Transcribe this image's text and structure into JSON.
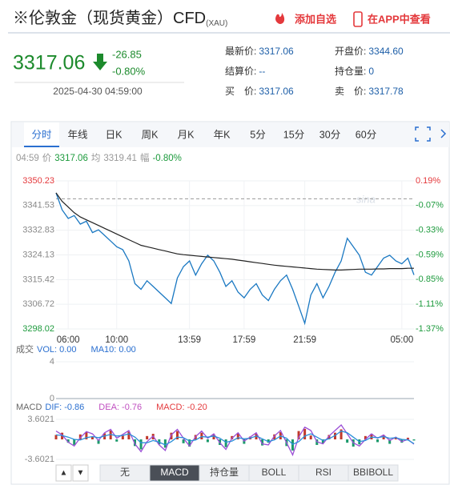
{
  "header": {
    "title": "※伦敦金（现货黄金）CFD",
    "code": "(XAU)",
    "actions": [
      "添加自选",
      "在APP中查看"
    ]
  },
  "quote": {
    "price": "3317.06",
    "change": "-26.85",
    "change_pct": "-0.80%",
    "time": "2025-04-30 04:59:00"
  },
  "stats": [
    {
      "label": "最新价:",
      "value": "3317.06"
    },
    {
      "label": "开盘价:",
      "value": "3344.60"
    },
    {
      "label": "结算价:",
      "value": "--"
    },
    {
      "label": "持仓量:",
      "value": "0"
    },
    {
      "label": "买　价:",
      "value": "3317.06"
    },
    {
      "label": "卖　价:",
      "value": "3317.78"
    }
  ],
  "tabs": [
    "分时",
    "年线",
    "日K",
    "周K",
    "月K",
    "年K",
    "5分",
    "15分",
    "30分",
    "60分"
  ],
  "active_tab": 0,
  "info": [
    "04:59",
    "价",
    "3317.06",
    "均",
    "3319.41",
    "幅",
    "-0.80%"
  ],
  "chart_data": [
    {
      "type": "line",
      "categories": [
        null,
        null,
        "06:00",
        null,
        null,
        null,
        null,
        null,
        null,
        null,
        "10:00",
        null,
        null,
        null,
        null,
        null,
        null,
        null,
        null,
        null,
        null,
        null,
        "13:59",
        null,
        null,
        null,
        null,
        null,
        null,
        null,
        null,
        "17:59",
        null,
        null,
        null,
        null,
        null,
        null,
        null,
        null,
        null,
        "21:59",
        null,
        null,
        null,
        null,
        null,
        null,
        null,
        null,
        null,
        null,
        null,
        null,
        null,
        null,
        null,
        "05:00",
        null,
        null
      ],
      "series": [
        {
          "color": "#1a78c2",
          "values": [
            3346,
            3340,
            3337,
            3338,
            3335,
            3336,
            3332,
            3333,
            3331,
            3329,
            3327,
            3326,
            3322,
            3314,
            3312,
            3315,
            3313,
            3311,
            3309,
            3307,
            3316,
            3320,
            3322,
            3317,
            3321,
            3324,
            3322,
            3318,
            3313,
            3315,
            3311,
            3309,
            3312,
            3314,
            3310,
            3308,
            3312,
            3315,
            3317,
            3312,
            3306,
            3300,
            3310,
            3314,
            3309,
            3313,
            3318,
            3322,
            3330,
            3327,
            3324,
            3318,
            3317,
            3320,
            3323,
            3324,
            3322,
            3321,
            3323,
            3317.06
          ]
        },
        {
          "color": "#222222",
          "values": [
            3346,
            3343,
            3341,
            3339,
            3337.5,
            3336.5,
            3335.5,
            3334.5,
            3333.5,
            3332.5,
            3331.5,
            3330.5,
            3329.5,
            3328.5,
            3327.5,
            3327,
            3326.5,
            3326,
            3325.5,
            3325,
            3324.5,
            3324.2,
            3324,
            3323.8,
            3323.6,
            3323.4,
            3323.2,
            3323,
            3322.8,
            3322.6,
            3322.3,
            3322,
            3321.7,
            3321.4,
            3321.1,
            3320.8,
            3320.5,
            3320.3,
            3320.1,
            3319.9,
            3319.7,
            3319.5,
            3319.3,
            3319.1,
            3319,
            3318.9,
            3318.8,
            3318.8,
            3318.9,
            3319,
            3319.1,
            3319.1,
            3319.1,
            3319.2,
            3319.2,
            3319.3,
            3319.3,
            3319.3,
            3319.4,
            3319.41
          ]
        }
      ],
      "baseline": 3343.91,
      "ylim": [
        3298.02,
        3350.23
      ],
      "yticks": [
        3350.23,
        3341.53,
        3332.83,
        3324.13,
        3315.42,
        3306.72,
        3298.02
      ],
      "y2lim": [
        -1.37,
        0.19
      ],
      "y2ticks": [
        {
          "value": 0.19,
          "label": "0.19%"
        },
        {
          "value": -0.07,
          "label": "-0.07%"
        },
        {
          "value": -0.33,
          "label": "-0.33%"
        },
        {
          "value": -0.59,
          "label": "-0.59%"
        },
        {
          "value": -0.85,
          "label": "-0.85%"
        },
        {
          "value": -1.11,
          "label": "-1.11%"
        },
        {
          "value": -1.37,
          "label": "-1.37%"
        }
      ],
      "up_color": "#e4393c",
      "down_color": "#1c9a3c",
      "grid": true
    },
    {
      "type": "bar",
      "title": "成交",
      "legend": [
        "VOL: 0.00",
        "MA10: 0.00"
      ],
      "values": [],
      "ylim": [
        0,
        4
      ],
      "yticks": [
        4,
        0
      ]
    },
    {
      "type": "bar",
      "title": "MACD",
      "legend": [
        "DIF: -0.86",
        "DEA: -0.76",
        "MACD: -0.20"
      ],
      "values": [
        0.8,
        1.2,
        -0.6,
        -1.0,
        0.9,
        1.3,
        0.5,
        -0.8,
        1.1,
        1.6,
        -0.4,
        0.7,
        1.4,
        -1.2,
        -1.8,
        0.6,
        1.0,
        -0.9,
        -1.5,
        1.2,
        1.5,
        -0.7,
        -1.3,
        0.8,
        1.2,
        -0.5,
        0.9,
        -1.0,
        -1.4,
        0.6,
        1.1,
        -0.8,
        0.5,
        1.0,
        -1.1,
        -0.6,
        0.9,
        1.3,
        -1.2,
        -2.0,
        1.5,
        1.9,
        0.7,
        -1.0,
        -0.7,
        0.8,
        1.2,
        1.8,
        -0.6,
        -1.3,
        -0.9,
        0.6,
        1.0,
        -0.5,
        0.7,
        -0.8,
        0.4,
        -0.6,
        0.3,
        -0.2
      ],
      "series": [
        {
          "color": "#9b4fd6",
          "values": [
            1.5,
            0.8,
            -0.5,
            -1.2,
            0.3,
            1.4,
            1.0,
            -0.2,
            1.2,
            1.8,
            0.2,
            0.9,
            1.6,
            -0.8,
            -2.2,
            -0.4,
            0.6,
            -1.0,
            -2.0,
            0.8,
            1.8,
            0.2,
            -1.2,
            0.5,
            1.5,
            0.2,
            1.0,
            -0.6,
            -1.8,
            0.2,
            1.2,
            -0.3,
            0.4,
            1.2,
            -0.8,
            -1.0,
            0.6,
            1.6,
            -0.6,
            -2.8,
            0.4,
            2.2,
            1.6,
            -0.4,
            -0.8,
            0.6,
            1.6,
            2.6,
            1.0,
            -0.6,
            -1.2,
            0.0,
            1.0,
            0.2,
            0.8,
            -0.2,
            0.4,
            -0.4,
            0.0,
            -0.86
          ]
        },
        {
          "color": "#2a8fd8",
          "values": [
            0.8,
            0.7,
            0.4,
            0.0,
            -0.1,
            0.3,
            0.5,
            0.3,
            0.6,
            0.9,
            0.6,
            0.7,
            1.0,
            0.4,
            -0.6,
            -0.6,
            -0.2,
            -0.5,
            -1.0,
            -0.4,
            0.4,
            0.3,
            -0.3,
            -0.1,
            0.5,
            0.4,
            0.6,
            0.2,
            -0.5,
            -0.3,
            0.3,
            0.1,
            0.2,
            0.6,
            0.1,
            -0.4,
            -0.1,
            0.6,
            0.2,
            -0.9,
            -0.4,
            0.6,
            1.0,
            0.4,
            -0.2,
            0.1,
            0.7,
            1.5,
            1.2,
            0.4,
            -0.4,
            -0.2,
            0.4,
            0.3,
            0.5,
            0.2,
            0.3,
            0.0,
            -0.1,
            -0.76
          ]
        }
      ],
      "legend_colors": [
        "#2a6fd0",
        "#c04fc0",
        "#e4393c"
      ],
      "up_color": "#c0392b",
      "down_color": "#1c9a6c",
      "ylim": [
        -3.6021,
        3.6021
      ],
      "yticks": [
        3.6021,
        -3.6021
      ]
    }
  ],
  "zoom": [
    "▲",
    "▼"
  ],
  "indicators": [
    "无",
    "MACD",
    "持仓量",
    "BOLL",
    "RSI",
    "BBIBOLL"
  ],
  "active_indicator": 1
}
